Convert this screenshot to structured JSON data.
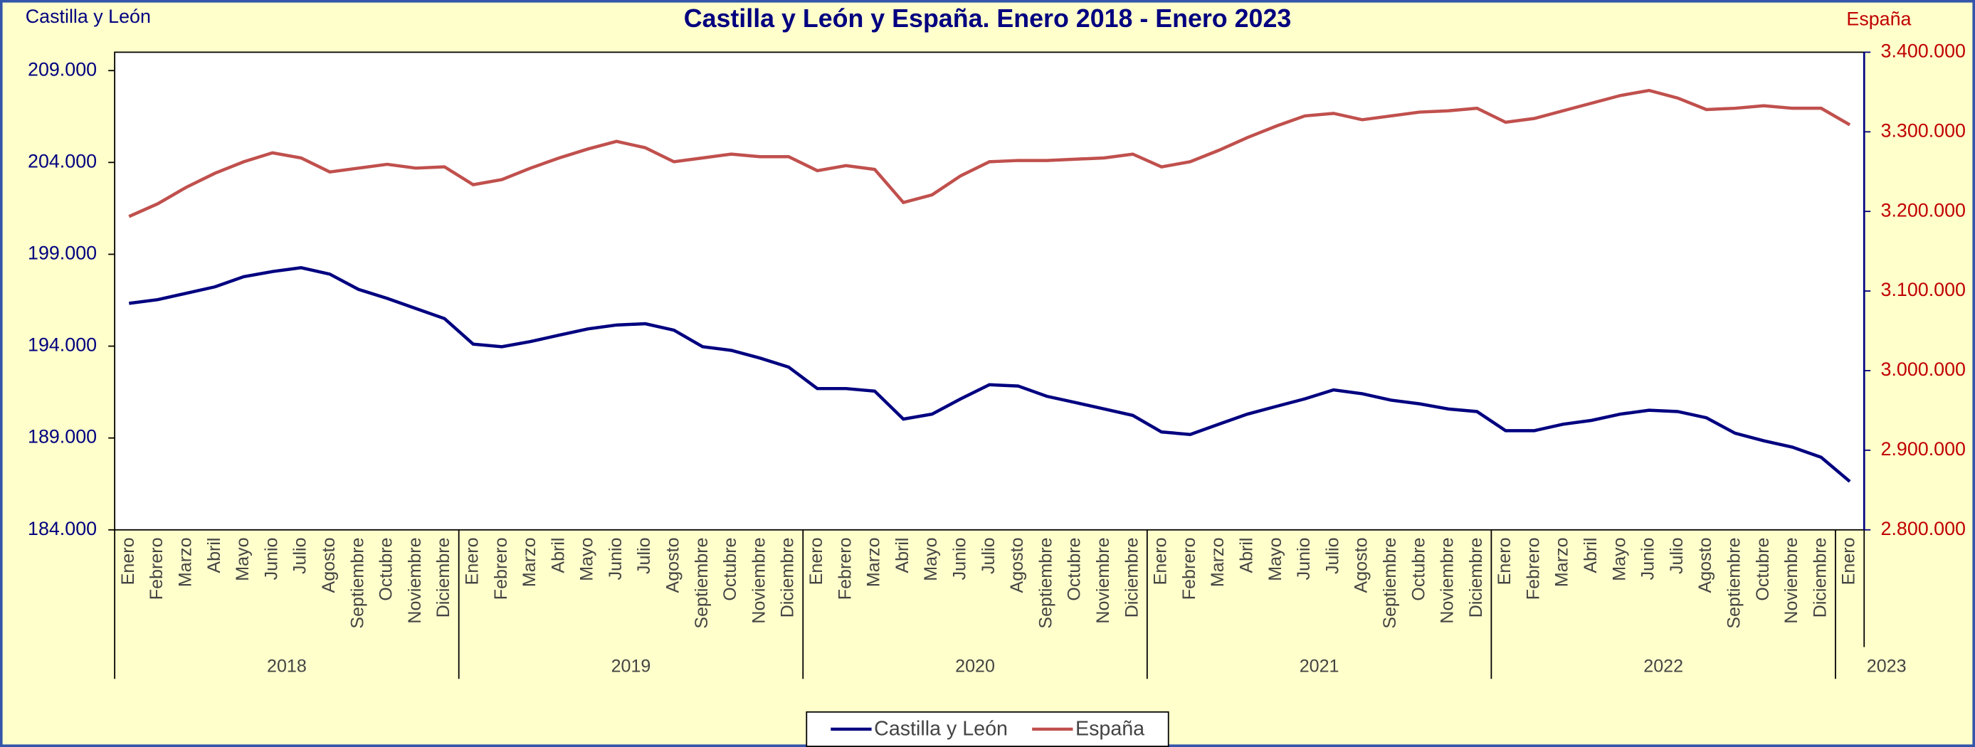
{
  "chart_data": {
    "type": "line",
    "title": "Castilla y León y España. Enero 2018 - Enero 2023",
    "ylabel": "Castilla y León",
    "y2label": "España",
    "categories": [
      "Enero",
      "Febrero",
      "Marzo",
      "Abril",
      "Mayo",
      "Junio",
      "Julio",
      "Agosto",
      "Septiembre",
      "Octubre",
      "Noviembre",
      "Diciembre",
      "Enero",
      "Febrero",
      "Marzo",
      "Abril",
      "Mayo",
      "Junio",
      "Julio",
      "Agosto",
      "Septiembre",
      "Octubre",
      "Noviembre",
      "Diciembre",
      "Enero",
      "Febrero",
      "Marzo",
      "Abril",
      "Mayo",
      "Junio",
      "Julio",
      "Agosto",
      "Septiembre",
      "Octubre",
      "Noviembre",
      "Diciembre",
      "Enero",
      "Febrero",
      "Marzo",
      "Abril",
      "Mayo",
      "Junio",
      "Julio",
      "Agosto",
      "Septiembre",
      "Octubre",
      "Noviembre",
      "Diciembre",
      "Enero",
      "Febrero",
      "Marzo",
      "Abril",
      "Mayo",
      "Junio",
      "Julio",
      "Agosto",
      "Septiembre",
      "Octubre",
      "Noviembre",
      "Diciembre",
      "Enero"
    ],
    "year_groups": [
      "2018",
      "2019",
      "2020",
      "2021",
      "2022",
      "2023"
    ],
    "series": [
      {
        "name": "Castilla y León",
        "color": "#000080",
        "values": [
          196330,
          196530,
          196880,
          197230,
          197780,
          198060,
          198270,
          197920,
          197090,
          196600,
          196050,
          195500,
          194110,
          193970,
          194250,
          194600,
          194940,
          195150,
          195220,
          194870,
          193970,
          193770,
          193350,
          192860,
          191690,
          191690,
          191550,
          190030,
          190300,
          191130,
          191900,
          191830,
          191270,
          190930,
          190580,
          190230,
          189330,
          189190,
          189750,
          190300,
          190720,
          191130,
          191620,
          191410,
          191060,
          190860,
          190580,
          190440,
          189400,
          189400,
          189750,
          189960,
          190300,
          190510,
          190440,
          190100,
          189260,
          188850,
          188500,
          187950,
          186630
        ]
      },
      {
        "name": "España",
        "color": "#c0504d",
        "axis": "y2",
        "values": [
          3193600,
          3209600,
          3230400,
          3248000,
          3262400,
          3273600,
          3267200,
          3249600,
          3254400,
          3259200,
          3254400,
          3256000,
          3233600,
          3240000,
          3254400,
          3267200,
          3278400,
          3288000,
          3280000,
          3262400,
          3267200,
          3272000,
          3268800,
          3268800,
          3251200,
          3257600,
          3252800,
          3211200,
          3220800,
          3244800,
          3262400,
          3264000,
          3264000,
          3265600,
          3267200,
          3272000,
          3256000,
          3262400,
          3276800,
          3292800,
          3307200,
          3320000,
          3323200,
          3315200,
          3320000,
          3324800,
          3326400,
          3329600,
          3312000,
          3316800,
          3326400,
          3336000,
          3345600,
          3352000,
          3342400,
          3328000,
          3329600,
          3332800,
          3329600,
          3329600,
          3308800
        ]
      }
    ],
    "ylim": [
      184000,
      210000
    ],
    "yticks": [
      {
        "value": 184000,
        "label": "184.000"
      },
      {
        "value": 189000,
        "label": "189.000"
      },
      {
        "value": 194000,
        "label": "194.000"
      },
      {
        "value": 199000,
        "label": "199.000"
      },
      {
        "value": 204000,
        "label": "204.000"
      },
      {
        "value": 209000,
        "label": "209.000"
      }
    ],
    "y2lim": [
      2800000,
      3400000
    ],
    "y2ticks": [
      {
        "value": 2800000,
        "label": "2.800.000"
      },
      {
        "value": 2900000,
        "label": "2.900.000"
      },
      {
        "value": 3000000,
        "label": "3.000.000"
      },
      {
        "value": 3100000,
        "label": "3.100.000"
      },
      {
        "value": 3200000,
        "label": "3.200.000"
      },
      {
        "value": 3300000,
        "label": "3.300.000"
      },
      {
        "value": 3400000,
        "label": "3.400.000"
      }
    ],
    "legend": "bottom"
  }
}
